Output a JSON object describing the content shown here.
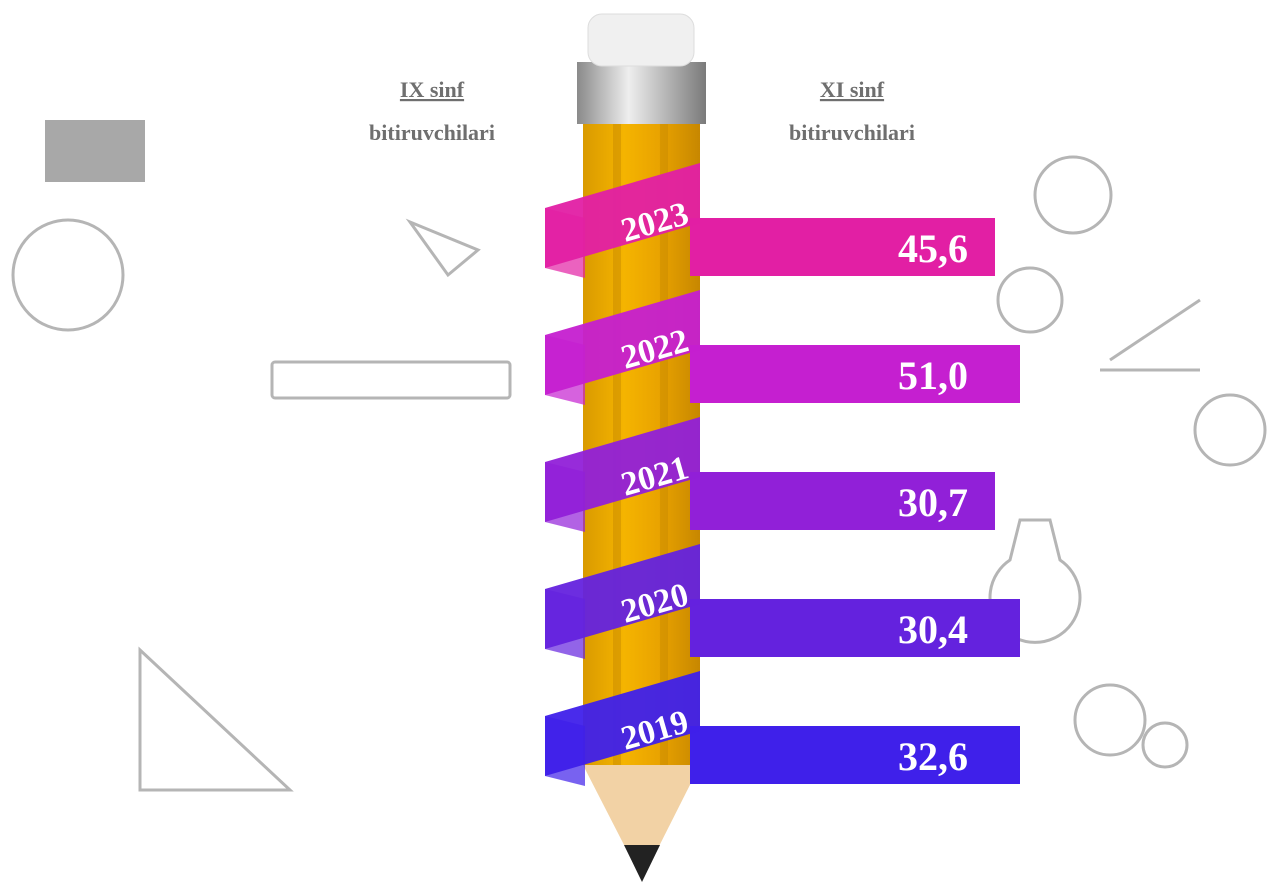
{
  "chart_data": {
    "type": "bar",
    "annotations": [
      {
        "title": "IX sinf",
        "subtitle": "bitiruvchilari"
      },
      {
        "title": "XI sinf",
        "subtitle": "bitiruvchilari"
      }
    ],
    "categories": [
      "2023",
      "2022",
      "2021",
      "2020",
      "2019"
    ],
    "values": [
      45.6,
      51.0,
      30.7,
      30.4,
      32.6
    ],
    "value_labels": [
      "45,6",
      "51,0",
      "30,7",
      "30,4",
      "32,6"
    ],
    "colors": [
      "#e21fa4",
      "#c51fd0",
      "#9120d8",
      "#6422de",
      "#3f20ea"
    ]
  }
}
